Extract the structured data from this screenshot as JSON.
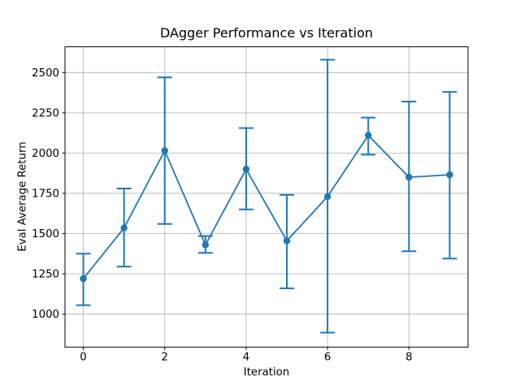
{
  "chart_data": {
    "type": "line",
    "title": "DAgger Performance vs Iteration",
    "xlabel": "Iteration",
    "ylabel": "Eval Average Return",
    "x": [
      0,
      1,
      2,
      3,
      4,
      5,
      6,
      7,
      8,
      9
    ],
    "series": [
      {
        "name": "Eval Average Return",
        "values": [
          1220,
          1535,
          2015,
          1430,
          1900,
          1455,
          1730,
          2110,
          1850,
          1865
        ],
        "err_low": [
          1055,
          1295,
          1560,
          1380,
          1650,
          1160,
          885,
          1990,
          1390,
          1345
        ],
        "err_high": [
          1375,
          1780,
          2470,
          1485,
          2155,
          1740,
          2580,
          2220,
          2320,
          2380
        ]
      }
    ],
    "xticks": [
      0,
      2,
      4,
      6,
      8
    ],
    "yticks": [
      1000,
      1250,
      1500,
      1750,
      2000,
      2250,
      2500
    ],
    "xlim": [
      -0.45,
      9.45
    ],
    "ylim": [
      795,
      2660
    ],
    "grid": true,
    "legend": false,
    "marker": "o",
    "error_caps": true,
    "line_color": "#1f77b4",
    "grid_color": "#b0b0b0",
    "axis_color": "#000000",
    "background_color": "#ffffff"
  }
}
